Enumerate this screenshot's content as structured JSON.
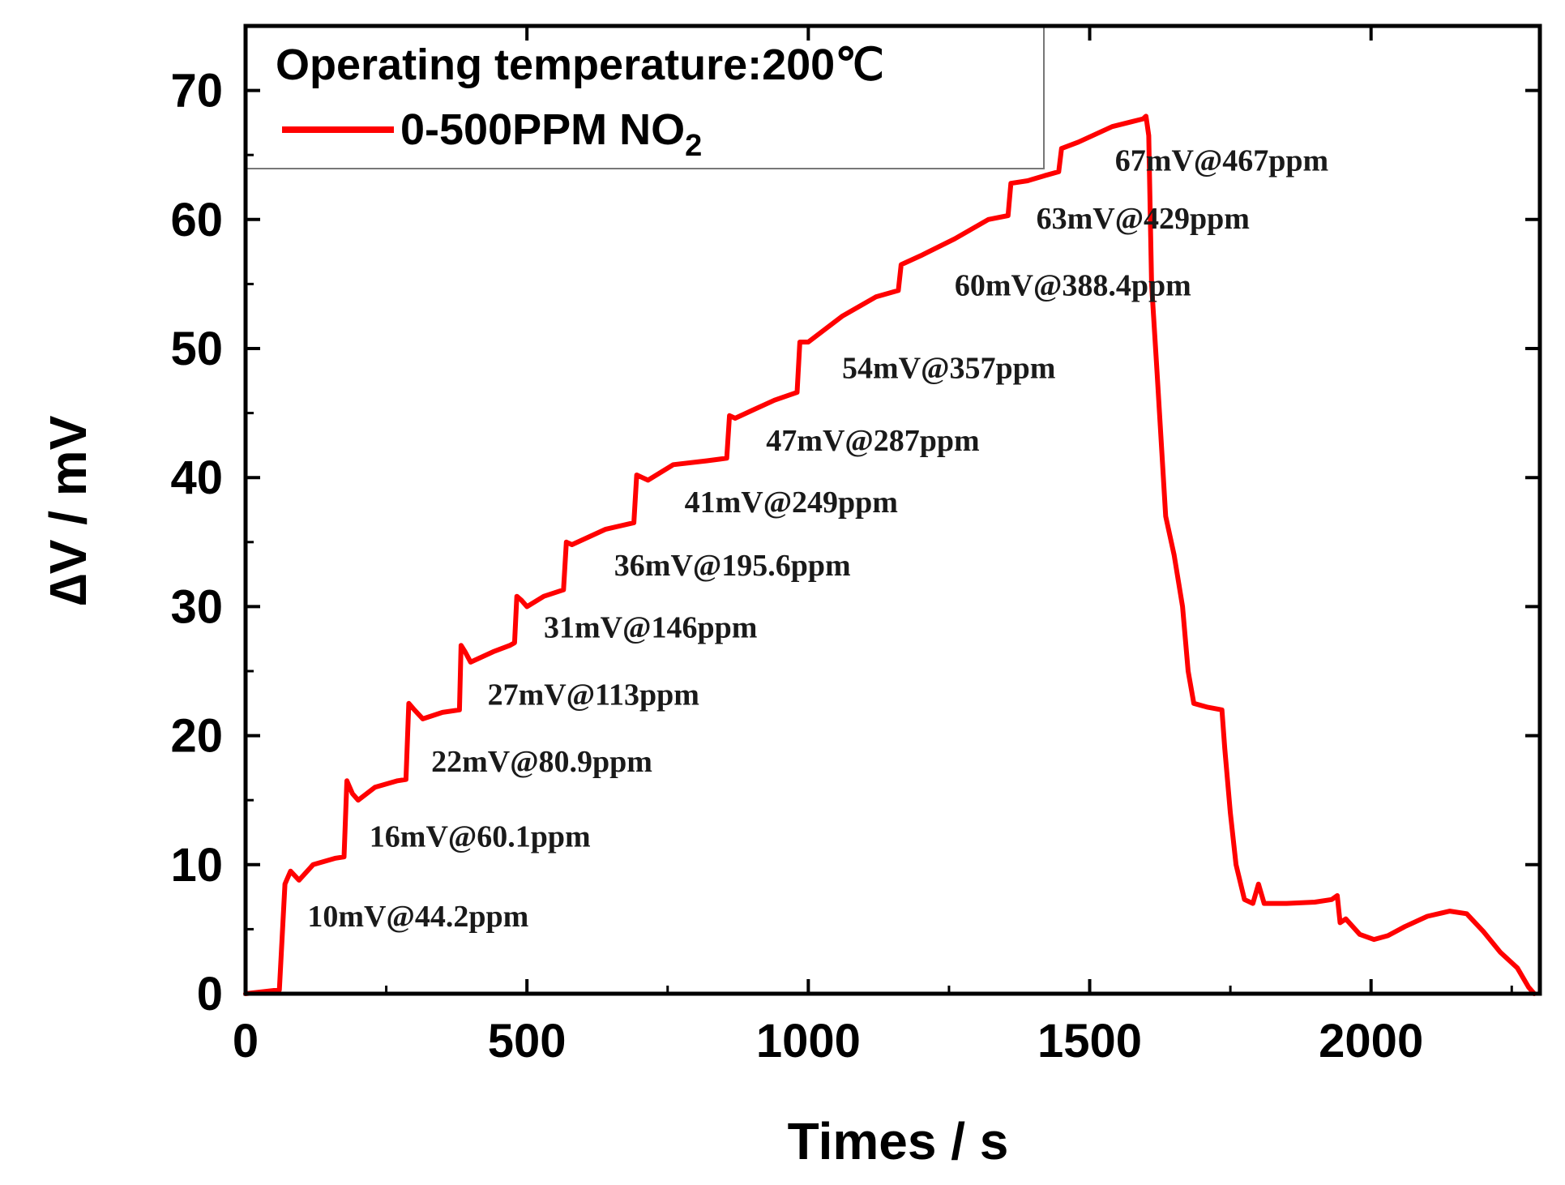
{
  "chart_data": {
    "type": "line",
    "title": "",
    "xlabel": "Times / s",
    "ylabel": "∆V / mV",
    "xlim": [
      0,
      2300
    ],
    "ylim": [
      0,
      75
    ],
    "xticks": [
      0,
      500,
      1000,
      1500,
      2000
    ],
    "yticks": [
      0,
      10,
      20,
      30,
      40,
      50,
      60,
      70
    ],
    "x_tick_labels": [
      "0",
      "500",
      "1000",
      "1500",
      "2000"
    ],
    "y_tick_labels": [
      "0",
      "10",
      "20",
      "30",
      "40",
      "50",
      "60",
      "70"
    ],
    "legend": {
      "title": "Operating temperature:200℃",
      "entry_label": "0-500PPM NO",
      "entry_subscript": "2",
      "placement": "top-left"
    },
    "series": [
      {
        "name": "0-500PPM NO2",
        "color": "#ff0000",
        "points": [
          [
            0,
            0
          ],
          [
            60,
            0.3
          ],
          [
            70,
            8.5
          ],
          [
            80,
            9.5
          ],
          [
            95,
            8.8
          ],
          [
            120,
            10.0
          ],
          [
            160,
            10.5
          ],
          [
            175,
            10.6
          ],
          [
            180,
            16.5
          ],
          [
            190,
            15.5
          ],
          [
            200,
            15.0
          ],
          [
            230,
            16.0
          ],
          [
            270,
            16.5
          ],
          [
            285,
            16.6
          ],
          [
            290,
            22.5
          ],
          [
            300,
            22.0
          ],
          [
            315,
            21.3
          ],
          [
            350,
            21.8
          ],
          [
            380,
            22.0
          ],
          [
            383,
            27.0
          ],
          [
            390,
            26.5
          ],
          [
            400,
            25.7
          ],
          [
            440,
            26.5
          ],
          [
            470,
            27.0
          ],
          [
            478,
            27.2
          ],
          [
            482,
            30.8
          ],
          [
            490,
            30.5
          ],
          [
            500,
            30.0
          ],
          [
            530,
            30.8
          ],
          [
            565,
            31.3
          ],
          [
            570,
            35.0
          ],
          [
            580,
            34.8
          ],
          [
            600,
            35.2
          ],
          [
            640,
            36.0
          ],
          [
            690,
            36.5
          ],
          [
            695,
            40.2
          ],
          [
            705,
            40.0
          ],
          [
            715,
            39.8
          ],
          [
            760,
            41.0
          ],
          [
            820,
            41.3
          ],
          [
            855,
            41.5
          ],
          [
            860,
            44.8
          ],
          [
            870,
            44.6
          ],
          [
            900,
            45.2
          ],
          [
            940,
            46.0
          ],
          [
            980,
            46.6
          ],
          [
            985,
            50.5
          ],
          [
            1000,
            50.5
          ],
          [
            1060,
            52.5
          ],
          [
            1120,
            54.0
          ],
          [
            1160,
            54.5
          ],
          [
            1165,
            56.5
          ],
          [
            1200,
            57.2
          ],
          [
            1260,
            58.5
          ],
          [
            1320,
            60.0
          ],
          [
            1355,
            60.3
          ],
          [
            1360,
            62.8
          ],
          [
            1390,
            63.0
          ],
          [
            1420,
            63.4
          ],
          [
            1445,
            63.7
          ],
          [
            1450,
            65.5
          ],
          [
            1480,
            66.0
          ],
          [
            1540,
            67.2
          ],
          [
            1595,
            67.8
          ],
          [
            1600,
            68.0
          ],
          [
            1605,
            66.5
          ],
          [
            1610,
            55.0
          ],
          [
            1620,
            48.0
          ],
          [
            1635,
            37.0
          ],
          [
            1650,
            34.0
          ],
          [
            1665,
            30.0
          ],
          [
            1675,
            25.0
          ],
          [
            1685,
            22.5
          ],
          [
            1710,
            22.2
          ],
          [
            1735,
            22.0
          ],
          [
            1740,
            19.0
          ],
          [
            1750,
            14.0
          ],
          [
            1760,
            10.0
          ],
          [
            1775,
            7.3
          ],
          [
            1790,
            7.0
          ],
          [
            1800,
            8.5
          ],
          [
            1810,
            7.0
          ],
          [
            1850,
            7.0
          ],
          [
            1900,
            7.1
          ],
          [
            1930,
            7.3
          ],
          [
            1940,
            7.6
          ],
          [
            1945,
            5.5
          ],
          [
            1955,
            5.8
          ],
          [
            1980,
            4.6
          ],
          [
            2005,
            4.2
          ],
          [
            2030,
            4.5
          ],
          [
            2060,
            5.2
          ],
          [
            2100,
            6.0
          ],
          [
            2140,
            6.4
          ],
          [
            2170,
            6.2
          ],
          [
            2200,
            4.8
          ],
          [
            2230,
            3.2
          ],
          [
            2260,
            2.0
          ],
          [
            2280,
            0.5
          ],
          [
            2290,
            0.0
          ]
        ]
      }
    ],
    "annotations": [
      {
        "text": "10mV@44.2ppm",
        "x": 110,
        "y": 5.2
      },
      {
        "text": "16mV@60.1ppm",
        "x": 220,
        "y": 11.4
      },
      {
        "text": "22mV@80.9ppm",
        "x": 330,
        "y": 17.2
      },
      {
        "text": "27mV@113ppm",
        "x": 430,
        "y": 22.4
      },
      {
        "text": "31mV@146ppm",
        "x": 530,
        "y": 27.6
      },
      {
        "text": "36mV@195.6ppm",
        "x": 655,
        "y": 32.4
      },
      {
        "text": "41mV@249ppm",
        "x": 780,
        "y": 37.3
      },
      {
        "text": "47mV@287ppm",
        "x": 925,
        "y": 42.1
      },
      {
        "text": "54mV@357ppm",
        "x": 1060,
        "y": 47.7
      },
      {
        "text": "60mV@388.4ppm",
        "x": 1260,
        "y": 54.1
      },
      {
        "text": "63mV@429ppm",
        "x": 1405,
        "y": 59.3
      },
      {
        "text": "67mV@467ppm",
        "x": 1545,
        "y": 63.8
      }
    ]
  }
}
